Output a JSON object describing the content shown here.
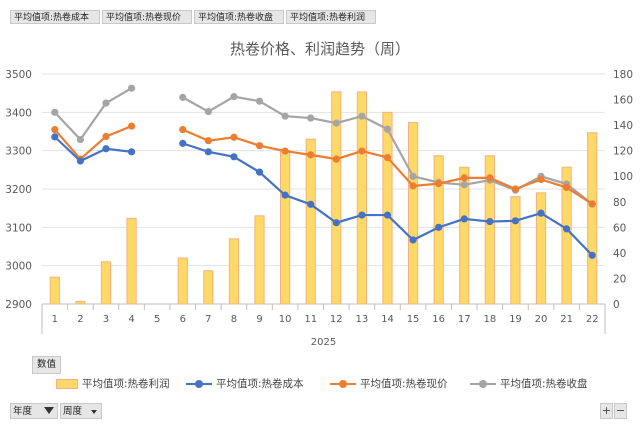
{
  "field_buttons": [
    "平均值项:热卷成本",
    "平均值项:热卷现价",
    "平均值项:热卷收盘",
    "平均值项:热卷利润"
  ],
  "value_tag": "数值",
  "bottom_fields": [
    "年度",
    "周度"
  ],
  "zoom_buttons": [
    "+",
    "−"
  ],
  "icons": [
    "filter-icon",
    "dropdown-arrow-icon"
  ],
  "chart_data": {
    "type": "bar+line",
    "title": "热卷价格、利润趋势（周）",
    "x_group_label": "2025",
    "categories": [
      "1",
      "2",
      "3",
      "4",
      "5",
      "6",
      "7",
      "8",
      "9",
      "10",
      "11",
      "12",
      "13",
      "14",
      "15",
      "16",
      "17",
      "18",
      "19",
      "20",
      "21",
      "22"
    ],
    "y_left": {
      "min": 2900,
      "max": 3500,
      "ticks": [
        2900,
        3000,
        3100,
        3200,
        3300,
        3400,
        3500
      ]
    },
    "y_right": {
      "min": 0,
      "max": 180,
      "ticks": [
        0,
        20,
        40,
        60,
        80,
        100,
        120,
        140,
        160,
        180
      ]
    },
    "grid": true,
    "legend_position": "bottom",
    "series": [
      {
        "name": "平均值项:热卷利润",
        "kind": "bar",
        "axis": "right",
        "color": "#ffd966",
        "edge": "#f4b183",
        "values": [
          21,
          2,
          33,
          67,
          null,
          36,
          26,
          51,
          69,
          120,
          129,
          166,
          166,
          150,
          142,
          116,
          107,
          116,
          84,
          87,
          107,
          134
        ]
      },
      {
        "name": "平均值项:热卷成本",
        "kind": "line",
        "axis": "left",
        "color": "#4472c4",
        "values": [
          3336,
          3273,
          3305,
          3297,
          null,
          3319,
          3297,
          3284,
          3244,
          3184,
          3160,
          3112,
          3132,
          3132,
          3067,
          3100,
          3122,
          3115,
          3117,
          3137,
          3096,
          3027
        ]
      },
      {
        "name": "平均值项:热卷现价",
        "kind": "line",
        "axis": "left",
        "color": "#ed7d31",
        "values": [
          3355,
          3278,
          3337,
          3364,
          null,
          3355,
          3326,
          3335,
          3313,
          3299,
          3289,
          3278,
          3299,
          3282,
          3208,
          3214,
          3229,
          3229,
          3200,
          3225,
          3204,
          3161
        ]
      },
      {
        "name": "平均值项:热卷收盘",
        "kind": "line",
        "axis": "left",
        "color": "#a5a5a5",
        "values": [
          3400,
          3329,
          3424,
          3463,
          null,
          3439,
          3402,
          3441,
          3429,
          3390,
          3385,
          3372,
          3390,
          3356,
          3233,
          3217,
          3211,
          3223,
          3197,
          3233,
          3213,
          3161
        ]
      }
    ]
  }
}
